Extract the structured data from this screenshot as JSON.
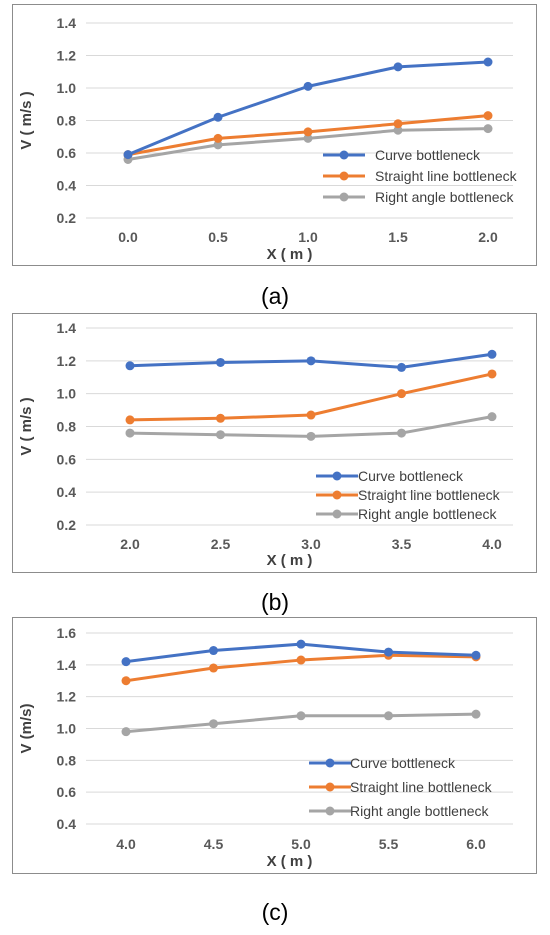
{
  "chart_data": [
    {
      "type": "line",
      "x": [
        0.0,
        0.5,
        1.0,
        1.5,
        2.0
      ],
      "x_tick_labels": [
        "0.0",
        "0.5",
        "1.0",
        "1.5",
        "2.0"
      ],
      "ylim": [
        0.2,
        1.4
      ],
      "y_ticks": [
        "0.2",
        "0.4",
        "0.6",
        "0.8",
        "1.0",
        "1.2",
        "1.4"
      ],
      "xlabel": "X ( m )",
      "ylabel": "V ( m/s )",
      "grid": true,
      "legend": "right",
      "series": [
        {
          "name": "Curve bottleneck",
          "color": "#4472c4",
          "values": [
            0.59,
            0.82,
            1.01,
            1.13,
            1.16
          ]
        },
        {
          "name": "Straight line bottleneck",
          "color": "#ed7d31",
          "values": [
            0.59,
            0.69,
            0.73,
            0.78,
            0.83
          ]
        },
        {
          "name": "Right angle bottleneck",
          "color": "#a5a5a5",
          "values": [
            0.56,
            0.65,
            0.69,
            0.74,
            0.75
          ]
        }
      ]
    },
    {
      "type": "line",
      "x": [
        2.0,
        2.5,
        3.0,
        3.5,
        4.0
      ],
      "x_tick_labels": [
        "2.0",
        "2.5",
        "3.0",
        "3.5",
        "4.0"
      ],
      "ylim": [
        0.2,
        1.4
      ],
      "y_ticks": [
        "0.2",
        "0.4",
        "0.6",
        "0.8",
        "1.0",
        "1.2",
        "1.4"
      ],
      "xlabel": "X ( m )",
      "ylabel": "V ( m/s )",
      "grid": true,
      "legend": "right",
      "series": [
        {
          "name": "Curve bottleneck",
          "color": "#4472c4",
          "values": [
            1.17,
            1.19,
            1.2,
            1.16,
            1.24
          ]
        },
        {
          "name": "Straight line bottleneck",
          "color": "#ed7d31",
          "values": [
            0.84,
            0.85,
            0.87,
            1.0,
            1.12
          ]
        },
        {
          "name": "Right angle bottleneck",
          "color": "#a5a5a5",
          "values": [
            0.76,
            0.75,
            0.74,
            0.76,
            0.86
          ]
        }
      ]
    },
    {
      "type": "line",
      "x": [
        4.0,
        4.5,
        5.0,
        5.5,
        6.0
      ],
      "x_tick_labels": [
        "4.0",
        "4.5",
        "5.0",
        "5.5",
        "6.0"
      ],
      "ylim": [
        0.4,
        1.6
      ],
      "y_ticks": [
        "0.4",
        "0.6",
        "0.8",
        "1.0",
        "1.2",
        "1.4",
        "1.6"
      ],
      "xlabel": "X ( m )",
      "ylabel": "V (m/s)",
      "grid": true,
      "legend": "right",
      "series": [
        {
          "name": "Curve bottleneck",
          "color": "#4472c4",
          "values": [
            1.42,
            1.49,
            1.53,
            1.48,
            1.46
          ]
        },
        {
          "name": "Straight line bottleneck",
          "color": "#ed7d31",
          "values": [
            1.3,
            1.38,
            1.43,
            1.46,
            1.45
          ]
        },
        {
          "name": "Right angle bottleneck",
          "color": "#a5a5a5",
          "values": [
            0.98,
            1.03,
            1.08,
            1.08,
            1.09
          ]
        }
      ]
    }
  ],
  "captions": [
    "(a)",
    "(b)",
    "(c)"
  ]
}
